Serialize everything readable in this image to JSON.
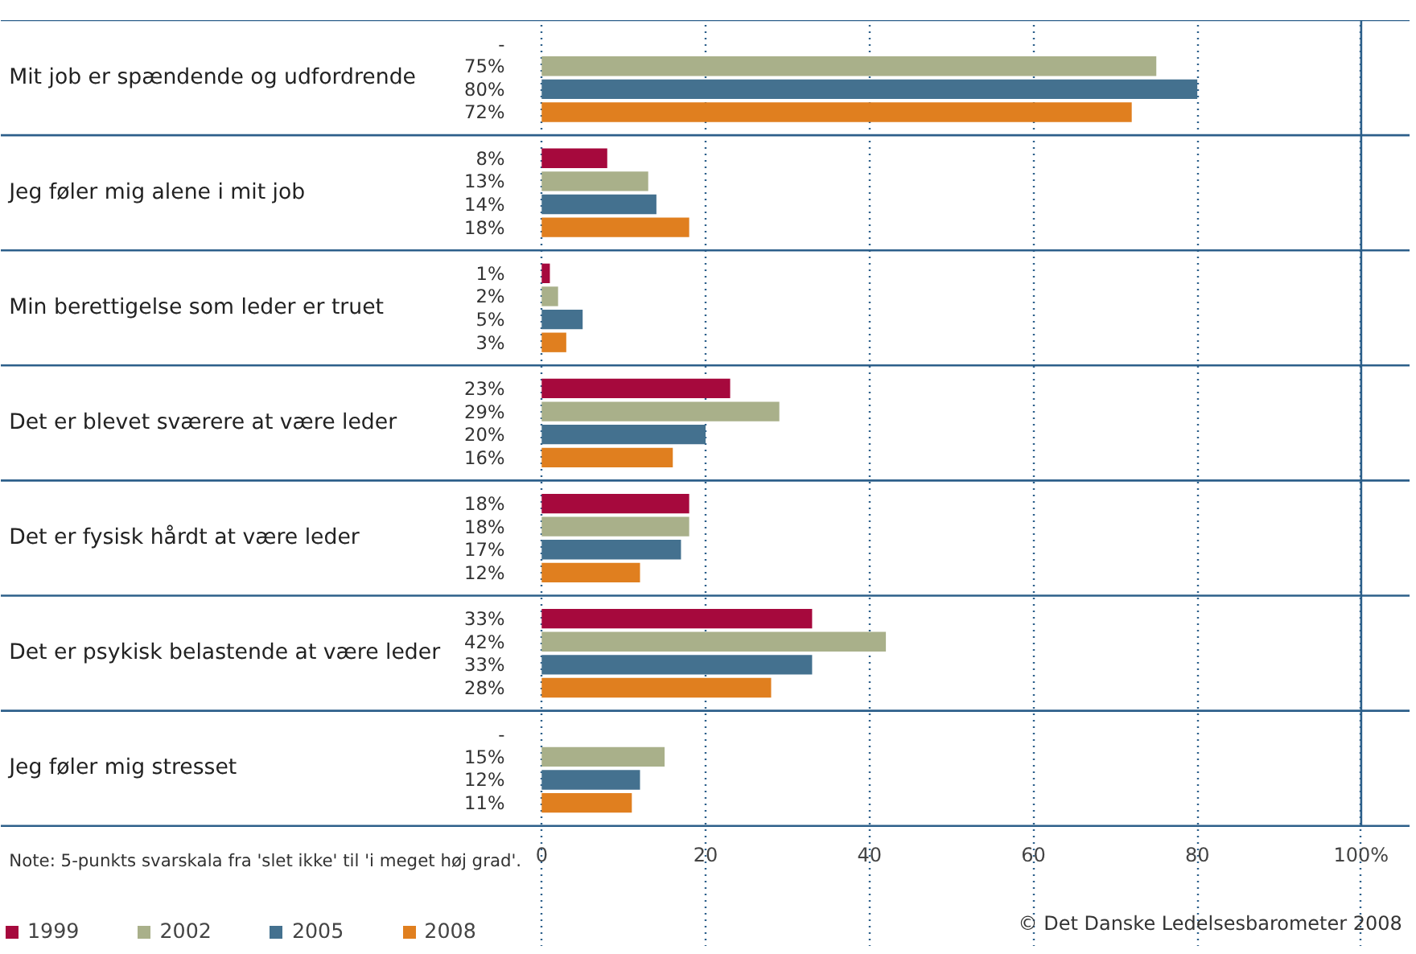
{
  "chart_data": {
    "type": "bar",
    "orientation": "horizontal",
    "categories": [
      "Mit job er spændende og udfordrende",
      "Jeg føler mig alene i mit job",
      "Min berettigelse som leder er truet",
      "Det er blevet sværere at være leder",
      "Det er fysisk hårdt at være leder",
      "Det er psykisk belastende at være leder",
      "Jeg føler mig stresset"
    ],
    "series": [
      {
        "name": "1999",
        "color": "#a6093d",
        "values": [
          null,
          8,
          1,
          23,
          18,
          33,
          null
        ],
        "value_labels": [
          "-",
          "8%",
          "1%",
          "23%",
          "18%",
          "33%",
          "-"
        ]
      },
      {
        "name": "2002",
        "color": "#a9b08a",
        "values": [
          75,
          13,
          2,
          29,
          18,
          42,
          15
        ],
        "value_labels": [
          "75%",
          "13%",
          "2%",
          "29%",
          "18%",
          "42%",
          "15%"
        ]
      },
      {
        "name": "2005",
        "color": "#44718f",
        "values": [
          80,
          14,
          5,
          20,
          17,
          33,
          12
        ],
        "value_labels": [
          "80%",
          "14%",
          "5%",
          "20%",
          "17%",
          "33%",
          "12%"
        ]
      },
      {
        "name": "2008",
        "color": "#e07f1f",
        "values": [
          72,
          18,
          3,
          16,
          12,
          28,
          11
        ],
        "value_labels": [
          "72%",
          "18%",
          "3%",
          "16%",
          "12%",
          "28%",
          "11%"
        ]
      }
    ],
    "xlim": [
      0,
      100
    ],
    "xticks": [
      0,
      20,
      40,
      60,
      80,
      {
        "value": 100,
        "label": "100%"
      }
    ],
    "grid": "x",
    "legend": "bottom left",
    "annotations": [
      "Note: 5-punkts svarskala fra 'slet ikke' til 'i meget høj grad'.",
      "© Det Danske Ledelsesbarometer 2008"
    ]
  }
}
